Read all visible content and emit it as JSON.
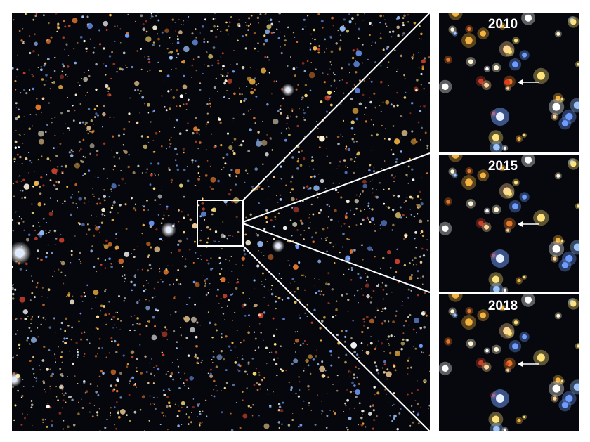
{
  "panels": [
    {
      "label": "2010"
    },
    {
      "label": "2015"
    },
    {
      "label": "2018"
    }
  ]
}
